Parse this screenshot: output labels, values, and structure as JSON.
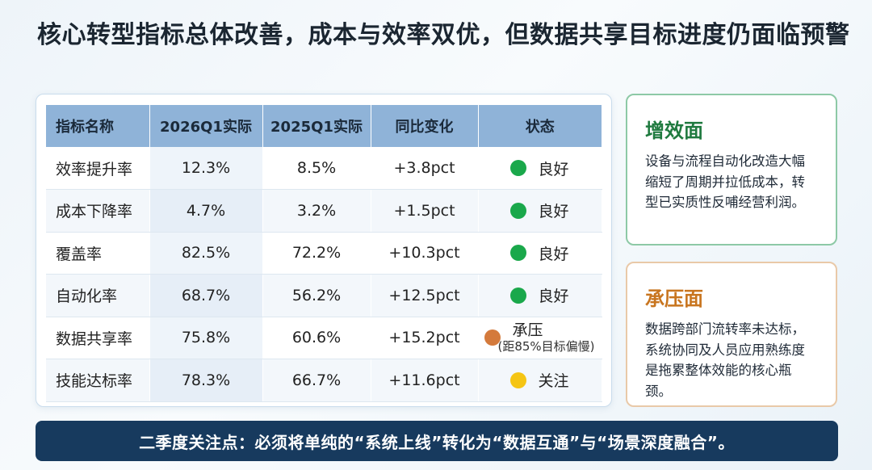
{
  "title": "核心转型指标总体改善，成本与效率双优，但数据共享目标进度仍面临预警",
  "colors": {
    "good": "#1aa84b",
    "pressure": "#d47a3c",
    "watch": "#f5c514",
    "header_bg": "#8fb3d8",
    "banner_bg": "#173a5e"
  },
  "table": {
    "headers": [
      "指标名称",
      "2026Q1实际",
      "2025Q1实际",
      "同比变化",
      "状态"
    ],
    "rows": [
      {
        "name": "效率提升率",
        "q1_2026": "12.3%",
        "q1_2025": "8.5%",
        "change": "+3.8pct",
        "status": "良好",
        "status_color": "#1aa84b",
        "note": ""
      },
      {
        "name": "成本下降率",
        "q1_2026": "4.7%",
        "q1_2025": "3.2%",
        "change": "+1.5pct",
        "status": "良好",
        "status_color": "#1aa84b",
        "note": ""
      },
      {
        "name": "覆盖率",
        "q1_2026": "82.5%",
        "q1_2025": "72.2%",
        "change": "+10.3pct",
        "status": "良好",
        "status_color": "#1aa84b",
        "note": ""
      },
      {
        "name": "自动化率",
        "q1_2026": "68.7%",
        "q1_2025": "56.2%",
        "change": "+12.5pct",
        "status": "良好",
        "status_color": "#1aa84b",
        "note": ""
      },
      {
        "name": "数据共享率",
        "q1_2026": "75.8%",
        "q1_2025": "60.6%",
        "change": "+15.2pct",
        "status": "承压",
        "status_color": "#d47a3c",
        "note": "(距85%目标偏慢)"
      },
      {
        "name": "技能达标率",
        "q1_2026": "78.3%",
        "q1_2025": "66.7%",
        "change": "+11.6pct",
        "status": "关注",
        "status_color": "#f5c514",
        "note": ""
      }
    ]
  },
  "cards": {
    "gain": {
      "heading": "增效面",
      "body": "设备与流程自动化改造大幅缩短了周期并拉低成本，转型已实质性反哺经营利润。"
    },
    "pressure": {
      "heading": "承压面",
      "body": "数据跨部门流转率未达标，系统协同及人员应用熟练度是拖累整体效能的核心瓶颈。"
    }
  },
  "banner": "二季度关注点：必须将单纯的“系统上线”转化为“数据互通”与“场景深度融合”。"
}
